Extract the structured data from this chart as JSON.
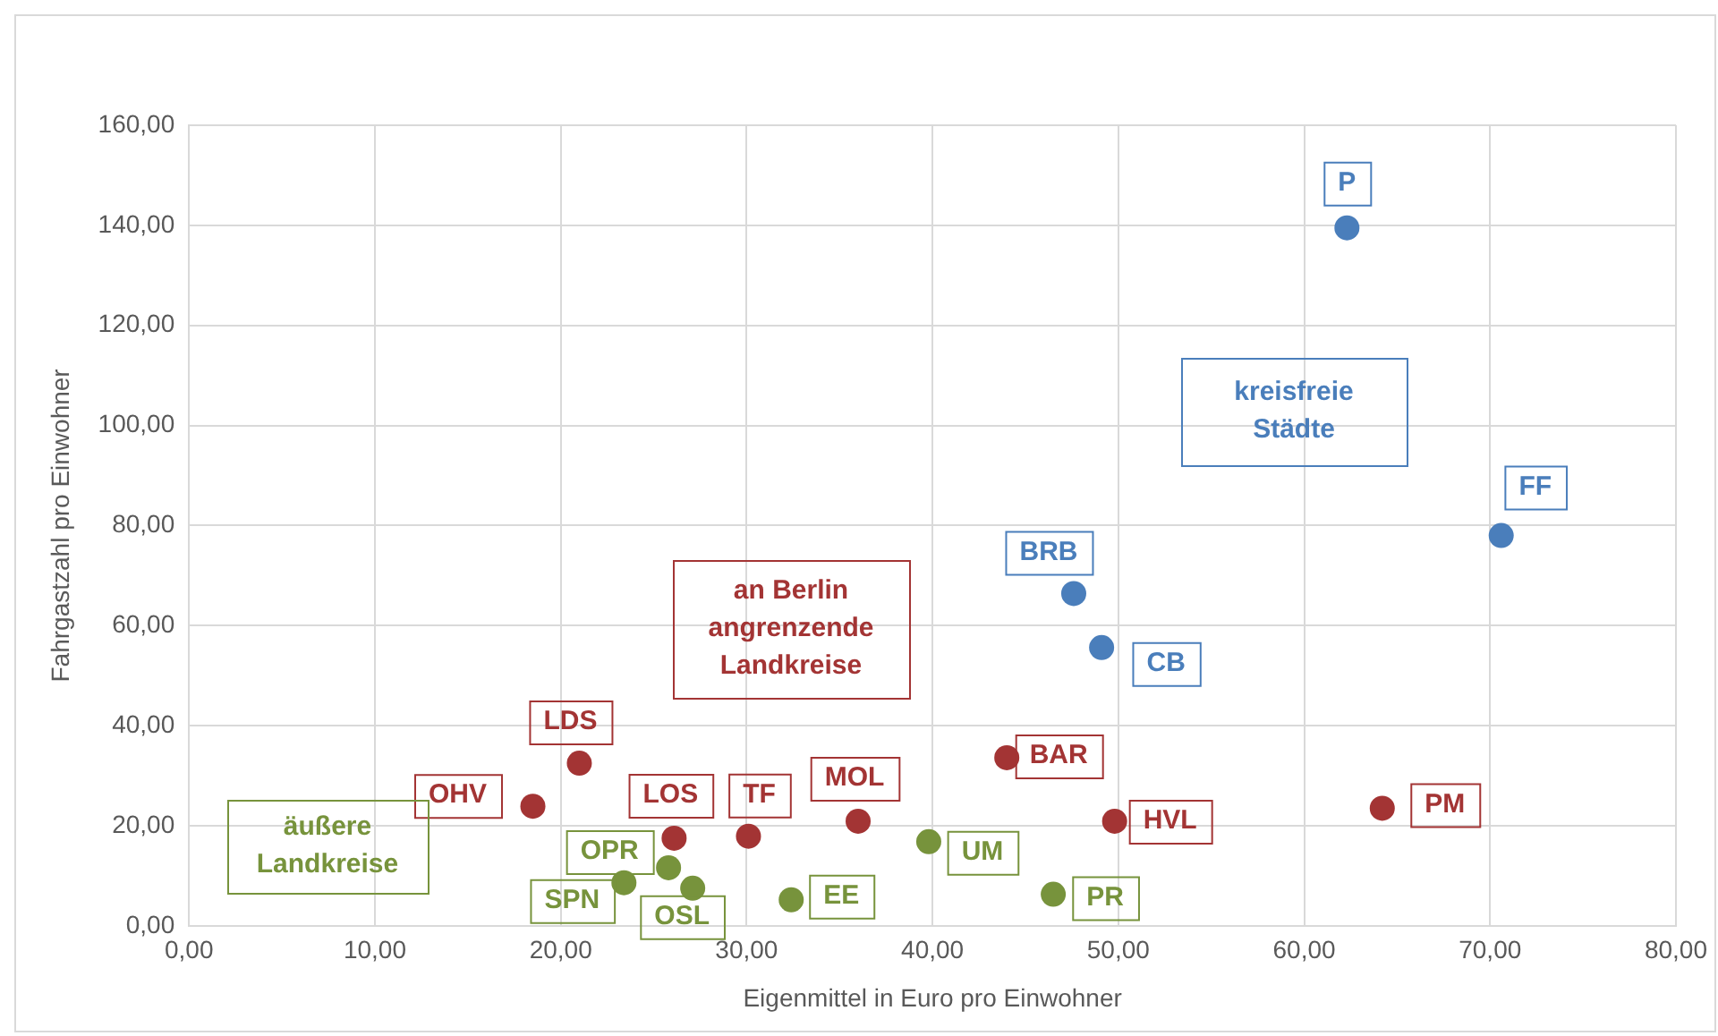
{
  "chart_data": {
    "type": "scatter",
    "xlabel": "Eigenmittel in Euro pro Einwohner",
    "ylabel": "Fahrgastzahl pro Einwohner",
    "xlim": [
      0,
      80
    ],
    "ylim": [
      0,
      160
    ],
    "xticks": [
      {
        "value": 0,
        "label": "0,00"
      },
      {
        "value": 10,
        "label": "10,00"
      },
      {
        "value": 20,
        "label": "20,00"
      },
      {
        "value": 30,
        "label": "30,00"
      },
      {
        "value": 40,
        "label": "40,00"
      },
      {
        "value": 50,
        "label": "50,00"
      },
      {
        "value": 60,
        "label": "60,00"
      },
      {
        "value": 70,
        "label": "70,00"
      },
      {
        "value": 80,
        "label": "80,00"
      }
    ],
    "yticks": [
      {
        "value": 0,
        "label": "0,00"
      },
      {
        "value": 20,
        "label": "20,00"
      },
      {
        "value": 40,
        "label": "40,00"
      },
      {
        "value": 60,
        "label": "60,00"
      },
      {
        "value": 80,
        "label": "80,00"
      },
      {
        "value": 100,
        "label": "100,00"
      },
      {
        "value": 120,
        "label": "120,00"
      },
      {
        "value": 140,
        "label": "140,00"
      },
      {
        "value": 160,
        "label": "160,00"
      }
    ],
    "grid": true,
    "legend": false,
    "marker": "circle",
    "series": [
      {
        "name": "kreisfreie Städte",
        "color": "#4a7ebb",
        "x": [
          62.3,
          70.6,
          47.6,
          49.1
        ],
        "values": [
          139.5,
          78,
          66.4,
          55.6
        ]
      },
      {
        "name": "an Berlin angrenzende Landkreise",
        "color": "#a33434",
        "x": [
          21.0,
          18.5,
          26.1,
          30.1,
          36.0,
          44.0,
          49.8,
          64.2
        ],
        "values": [
          32.5,
          23.9,
          17.5,
          17.9,
          20.9,
          33.6,
          20.9,
          23.5
        ]
      },
      {
        "name": "äußere Landkreise",
        "color": "#77933c",
        "x": [
          23.4,
          25.8,
          27.1,
          32.4,
          39.8,
          46.5
        ],
        "values": [
          8.6,
          11.6,
          7.5,
          5.2,
          16.8,
          6.3
        ]
      }
    ],
    "annotations": [
      {
        "text": "P",
        "x": 62.3,
        "y": 139.5
      },
      {
        "text": "FF",
        "x": 70.6,
        "y": 78
      },
      {
        "text": "BRB",
        "x": 47.6,
        "y": 66.4
      },
      {
        "text": "CB",
        "x": 49.1,
        "y": 55.6
      },
      {
        "text": "LDS",
        "x": 21.0,
        "y": 32.5
      },
      {
        "text": "OHV",
        "x": 18.5,
        "y": 23.9
      },
      {
        "text": "LOS",
        "x": 26.1,
        "y": 17.5
      },
      {
        "text": "TF",
        "x": 30.1,
        "y": 17.9
      },
      {
        "text": "MOL",
        "x": 36.0,
        "y": 20.9
      },
      {
        "text": "BAR",
        "x": 44.0,
        "y": 33.6
      },
      {
        "text": "HVL",
        "x": 49.8,
        "y": 20.9
      },
      {
        "text": "PM",
        "x": 64.2,
        "y": 23.5
      },
      {
        "text": "SPN",
        "x": 23.4,
        "y": 8.6
      },
      {
        "text": "OPR",
        "x": 25.8,
        "y": 11.6
      },
      {
        "text": "OSL",
        "x": 27.1,
        "y": 7.5
      },
      {
        "text": "EE",
        "x": 32.4,
        "y": 5.2
      },
      {
        "text": "UM",
        "x": 39.8,
        "y": 16.8
      },
      {
        "text": "PR",
        "x": 46.5,
        "y": 6.3
      }
    ]
  }
}
